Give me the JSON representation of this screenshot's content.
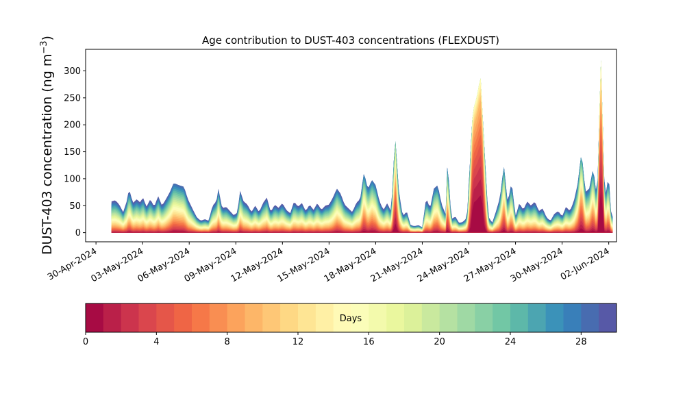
{
  "chart_data": {
    "type": "area",
    "title": "Age contribution to DUST-403 concentrations (FLEXDUST)",
    "ylabel_main": "DUST-403 concentration (ng m",
    "ylabel_sup": "−3",
    "ylabel_close": ")",
    "xlabel": "",
    "stacked": true,
    "ylim": [
      -17,
      340
    ],
    "xlim": [
      "2024-04-29T08:00",
      "2024-06-02T12:00"
    ],
    "y_ticks": [
      0,
      50,
      100,
      150,
      200,
      250,
      300
    ],
    "x_ticks": [
      {
        "date": "2024-04-30",
        "label": "30-Apr-2024"
      },
      {
        "date": "2024-05-03",
        "label": "03-May-2024"
      },
      {
        "date": "2024-05-06",
        "label": "06-May-2024"
      },
      {
        "date": "2024-05-09",
        "label": "09-May-2024"
      },
      {
        "date": "2024-05-12",
        "label": "12-May-2024"
      },
      {
        "date": "2024-05-15",
        "label": "15-May-2024"
      },
      {
        "date": "2024-05-18",
        "label": "18-May-2024"
      },
      {
        "date": "2024-05-21",
        "label": "21-May-2024"
      },
      {
        "date": "2024-05-24",
        "label": "24-May-2024"
      },
      {
        "date": "2024-05-27",
        "label": "27-May-2024"
      },
      {
        "date": "2024-05-30",
        "label": "30-May-2024"
      },
      {
        "date": "2024-06-02",
        "label": "02-Jun-2024"
      }
    ],
    "series_description_note": "",
    "total": [
      [
        "2024-05-01T00:00",
        58
      ],
      [
        "2024-05-01T06:00",
        60
      ],
      [
        "2024-05-01T12:00",
        52
      ],
      [
        "2024-05-01T18:00",
        38
      ],
      [
        "2024-05-02T00:00",
        60
      ],
      [
        "2024-05-02T03:00",
        82
      ],
      [
        "2024-05-02T09:00",
        55
      ],
      [
        "2024-05-02T15:00",
        62
      ],
      [
        "2024-05-02T21:00",
        55
      ],
      [
        "2024-05-03T00:00",
        67
      ],
      [
        "2024-05-03T06:00",
        48
      ],
      [
        "2024-05-03T12:00",
        62
      ],
      [
        "2024-05-03T18:00",
        48
      ],
      [
        "2024-05-04T00:00",
        68
      ],
      [
        "2024-05-04T06:00",
        50
      ],
      [
        "2024-05-04T12:00",
        62
      ],
      [
        "2024-05-04T18:00",
        75
      ],
      [
        "2024-05-05T00:00",
        92
      ],
      [
        "2024-05-05T08:00",
        88
      ],
      [
        "2024-05-05T16:00",
        85
      ],
      [
        "2024-05-05T22:00",
        62
      ],
      [
        "2024-05-06T06:00",
        42
      ],
      [
        "2024-05-06T12:00",
        28
      ],
      [
        "2024-05-06T18:00",
        22
      ],
      [
        "2024-05-07T00:00",
        25
      ],
      [
        "2024-05-07T06:00",
        22
      ],
      [
        "2024-05-07T12:00",
        50
      ],
      [
        "2024-05-07T18:00",
        58
      ],
      [
        "2024-05-07T21:00",
        82
      ],
      [
        "2024-05-08T03:00",
        45
      ],
      [
        "2024-05-08T09:00",
        48
      ],
      [
        "2024-05-08T15:00",
        40
      ],
      [
        "2024-05-08T21:00",
        32
      ],
      [
        "2024-05-09T03:00",
        38
      ],
      [
        "2024-05-09T06:00",
        80
      ],
      [
        "2024-05-09T12:00",
        58
      ],
      [
        "2024-05-09T18:00",
        52
      ],
      [
        "2024-05-10T00:00",
        38
      ],
      [
        "2024-05-10T06:00",
        50
      ],
      [
        "2024-05-10T12:00",
        38
      ],
      [
        "2024-05-10T18:00",
        55
      ],
      [
        "2024-05-11T00:00",
        65
      ],
      [
        "2024-05-11T06:00",
        38
      ],
      [
        "2024-05-11T12:00",
        52
      ],
      [
        "2024-05-11T18:00",
        46
      ],
      [
        "2024-05-12T00:00",
        55
      ],
      [
        "2024-05-12T06:00",
        42
      ],
      [
        "2024-05-12T12:00",
        36
      ],
      [
        "2024-05-12T18:00",
        58
      ],
      [
        "2024-05-13T00:00",
        48
      ],
      [
        "2024-05-13T06:00",
        55
      ],
      [
        "2024-05-13T12:00",
        40
      ],
      [
        "2024-05-13T18:00",
        52
      ],
      [
        "2024-05-14T00:00",
        42
      ],
      [
        "2024-05-14T06:00",
        55
      ],
      [
        "2024-05-14T12:00",
        42
      ],
      [
        "2024-05-14T18:00",
        50
      ],
      [
        "2024-05-15T00:00",
        52
      ],
      [
        "2024-05-15T06:00",
        65
      ],
      [
        "2024-05-15T12:00",
        82
      ],
      [
        "2024-05-15T18:00",
        72
      ],
      [
        "2024-05-16T00:00",
        52
      ],
      [
        "2024-05-16T06:00",
        45
      ],
      [
        "2024-05-16T12:00",
        38
      ],
      [
        "2024-05-16T18:00",
        55
      ],
      [
        "2024-05-17T00:00",
        62
      ],
      [
        "2024-05-17T06:00",
        112
      ],
      [
        "2024-05-17T12:00",
        80
      ],
      [
        "2024-05-17T18:00",
        98
      ],
      [
        "2024-05-18T00:00",
        88
      ],
      [
        "2024-05-18T06:00",
        58
      ],
      [
        "2024-05-18T12:00",
        42
      ],
      [
        "2024-05-18T18:00",
        55
      ],
      [
        "2024-05-19T00:00",
        38
      ],
      [
        "2024-05-19T06:00",
        180
      ],
      [
        "2024-05-19T12:00",
        75
      ],
      [
        "2024-05-19T18:00",
        30
      ],
      [
        "2024-05-20T00:00",
        40
      ],
      [
        "2024-05-20T06:00",
        14
      ],
      [
        "2024-05-20T12:00",
        12
      ],
      [
        "2024-05-20T18:00",
        14
      ],
      [
        "2024-05-21T00:00",
        10
      ],
      [
        "2024-05-21T06:00",
        65
      ],
      [
        "2024-05-21T12:00",
        45
      ],
      [
        "2024-05-21T18:00",
        82
      ],
      [
        "2024-05-22T00:00",
        88
      ],
      [
        "2024-05-22T06:00",
        52
      ],
      [
        "2024-05-22T12:00",
        35
      ],
      [
        "2024-05-22T15:00",
        135
      ],
      [
        "2024-05-22T21:00",
        25
      ],
      [
        "2024-05-23T03:00",
        30
      ],
      [
        "2024-05-23T09:00",
        18
      ],
      [
        "2024-05-23T15:00",
        20
      ],
      [
        "2024-05-23T21:00",
        28
      ],
      [
        "2024-05-24T06:00",
        225
      ],
      [
        "2024-05-24T12:00",
        250
      ],
      [
        "2024-05-24T18:00",
        290
      ],
      [
        "2024-05-25T00:00",
        155
      ],
      [
        "2024-05-25T06:00",
        30
      ],
      [
        "2024-05-25T12:00",
        18
      ],
      [
        "2024-05-25T18:00",
        40
      ],
      [
        "2024-05-26T00:00",
        65
      ],
      [
        "2024-05-26T06:00",
        125
      ],
      [
        "2024-05-26T12:00",
        55
      ],
      [
        "2024-05-26T18:00",
        95
      ],
      [
        "2024-05-27T00:00",
        30
      ],
      [
        "2024-05-27T06:00",
        55
      ],
      [
        "2024-05-27T12:00",
        42
      ],
      [
        "2024-05-27T18:00",
        58
      ],
      [
        "2024-05-28T00:00",
        50
      ],
      [
        "2024-05-28T06:00",
        58
      ],
      [
        "2024-05-28T12:00",
        40
      ],
      [
        "2024-05-28T18:00",
        45
      ],
      [
        "2024-05-29T00:00",
        28
      ],
      [
        "2024-05-29T06:00",
        22
      ],
      [
        "2024-05-29T12:00",
        35
      ],
      [
        "2024-05-29T18:00",
        40
      ],
      [
        "2024-05-30T00:00",
        30
      ],
      [
        "2024-05-30T06:00",
        48
      ],
      [
        "2024-05-30T12:00",
        40
      ],
      [
        "2024-05-30T18:00",
        58
      ],
      [
        "2024-05-31T00:00",
        90
      ],
      [
        "2024-05-31T06:00",
        150
      ],
      [
        "2024-05-31T12:00",
        75
      ],
      [
        "2024-05-31T18:00",
        82
      ],
      [
        "2024-06-01T00:00",
        120
      ],
      [
        "2024-06-01T06:00",
        62
      ],
      [
        "2024-06-01T09:00",
        195
      ],
      [
        "2024-06-01T12:00",
        322
      ],
      [
        "2024-06-01T18:00",
        60
      ],
      [
        "2024-06-02T00:00",
        108
      ],
      [
        "2024-06-02T03:00",
        42
      ],
      [
        "2024-06-02T06:00",
        30
      ]
    ],
    "colorbar": {
      "label": "Days",
      "min": 0,
      "max": 30,
      "bins": 30,
      "ticks": [
        0,
        4,
        8,
        12,
        16,
        20,
        24,
        28
      ],
      "colormap": "Spectral"
    }
  }
}
